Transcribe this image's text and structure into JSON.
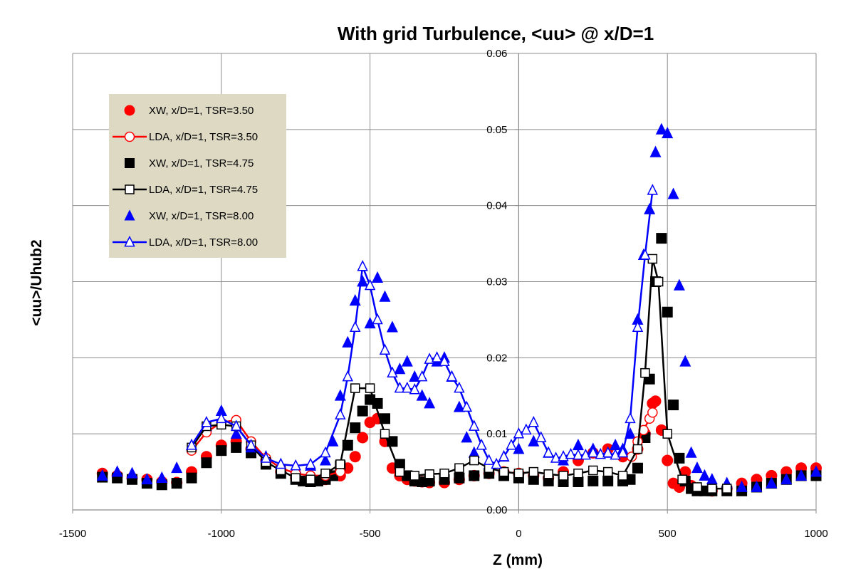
{
  "chart_data": {
    "type": "scatter",
    "title": "With grid Turbulence, <uu> @ x/D=1",
    "xlabel": "Z (mm)",
    "ylabel": "<uu>/Uhub2",
    "xlim": [
      -1500,
      1000
    ],
    "ylim": [
      0,
      0.06
    ],
    "xticks": [
      "-1500",
      "-1000",
      "-500",
      "0",
      "500",
      "1000"
    ],
    "yticks": [
      "0.00",
      "0.01",
      "0.02",
      "0.03",
      "0.04",
      "0.05",
      "0.06"
    ],
    "grid": true,
    "legend_position": "top-left",
    "series": [
      {
        "name": "XW, x/D=1, TSR=3.50",
        "color": "#ff0000",
        "marker": "circle",
        "filled": true,
        "line": false,
        "x": [
          -1400,
          -1350,
          -1300,
          -1250,
          -1200,
          -1150,
          -1100,
          -1050,
          -1000,
          -950,
          -900,
          -850,
          -800,
          -750,
          -700,
          -650,
          -600,
          -575,
          -550,
          -525,
          -500,
          -475,
          -450,
          -425,
          -400,
          -375,
          -350,
          -325,
          -300,
          -250,
          -200,
          -150,
          -100,
          -50,
          0,
          50,
          100,
          150,
          200,
          250,
          300,
          350,
          400,
          425,
          450,
          460,
          480,
          500,
          520,
          540,
          560,
          580,
          600,
          650,
          700,
          750,
          800,
          850,
          900,
          950,
          1000
        ],
        "y": [
          0.0048,
          0.0045,
          0.0042,
          0.004,
          0.0037,
          0.0036,
          0.005,
          0.007,
          0.0085,
          0.009,
          0.008,
          0.0065,
          0.005,
          0.0042,
          0.004,
          0.004,
          0.0045,
          0.0055,
          0.007,
          0.0095,
          0.0115,
          0.012,
          0.009,
          0.0055,
          0.0045,
          0.004,
          0.0038,
          0.0037,
          0.0036,
          0.0036,
          0.004,
          0.0045,
          0.0048,
          0.005,
          0.0048,
          0.0045,
          0.0042,
          0.005,
          0.0065,
          0.0075,
          0.008,
          0.007,
          0.008,
          0.01,
          0.014,
          0.0143,
          0.0105,
          0.0065,
          0.0035,
          0.003,
          0.005,
          0.0032,
          0.0028,
          0.0025,
          0.0028,
          0.0035,
          0.004,
          0.0045,
          0.005,
          0.0055,
          0.0055
        ]
      },
      {
        "name": "LDA, x/D=1, TSR=3.50",
        "color": "#ff0000",
        "marker": "circle",
        "filled": false,
        "line": true,
        "x": [
          -1100,
          -1050,
          -1000,
          -950,
          -900,
          -850,
          -800,
          -750,
          -700,
          -650,
          -600
        ],
        "y": [
          0.0078,
          0.0102,
          0.0115,
          0.0118,
          0.009,
          0.0068,
          0.0055,
          0.0048,
          0.0045,
          0.0045,
          0.005
        ],
        "x2": [
          380,
          400,
          420,
          440,
          450
        ],
        "y2": [
          0.007,
          0.009,
          0.0105,
          0.012,
          0.0128
        ]
      },
      {
        "name": "XW, x/D=1, TSR=4.75",
        "color": "#000000",
        "marker": "square",
        "filled": true,
        "line": false,
        "x": [
          -1400,
          -1350,
          -1300,
          -1250,
          -1200,
          -1150,
          -1100,
          -1050,
          -1000,
          -950,
          -900,
          -850,
          -800,
          -750,
          -725,
          -700,
          -675,
          -650,
          -625,
          -600,
          -575,
          -550,
          -525,
          -500,
          -475,
          -450,
          -425,
          -400,
          -375,
          -350,
          -325,
          -300,
          -250,
          -200,
          -150,
          -100,
          -50,
          0,
          50,
          100,
          150,
          200,
          250,
          300,
          350,
          375,
          400,
          425,
          440,
          460,
          480,
          500,
          520,
          540,
          560,
          580,
          600,
          625,
          650,
          700,
          750,
          800,
          850,
          900,
          950,
          1000
        ],
        "y": [
          0.0043,
          0.0042,
          0.004,
          0.0035,
          0.0033,
          0.0035,
          0.0042,
          0.0062,
          0.0078,
          0.0082,
          0.0075,
          0.006,
          0.0048,
          0.004,
          0.0038,
          0.0037,
          0.0038,
          0.004,
          0.0045,
          0.0058,
          0.0085,
          0.0108,
          0.013,
          0.0145,
          0.014,
          0.012,
          0.009,
          0.006,
          0.0045,
          0.0038,
          0.0037,
          0.0038,
          0.004,
          0.0042,
          0.0045,
          0.0048,
          0.0045,
          0.0042,
          0.004,
          0.0038,
          0.0037,
          0.0037,
          0.0038,
          0.0038,
          0.0038,
          0.004,
          0.0055,
          0.0095,
          0.0172,
          0.03,
          0.0357,
          0.026,
          0.0138,
          0.0068,
          0.0038,
          0.0028,
          0.0025,
          0.0025,
          0.0025,
          0.0025,
          0.0025,
          0.003,
          0.0035,
          0.004,
          0.0045,
          0.0045
        ]
      },
      {
        "name": "LDA, x/D=1, TSR=4.75",
        "color": "#000000",
        "marker": "square",
        "filled": false,
        "line": true,
        "x": [
          -1100,
          -1050,
          -1000,
          -950,
          -900,
          -850,
          -800,
          -750,
          -700,
          -650,
          -600,
          -550,
          -500,
          -450,
          -400,
          -350,
          -300,
          -250,
          -200,
          -150,
          -100,
          -50,
          0,
          50,
          100,
          150,
          200,
          250,
          300,
          350,
          400,
          425,
          450,
          470,
          500,
          550,
          600,
          650,
          700
        ],
        "y": [
          0.0082,
          0.011,
          0.0112,
          0.011,
          0.0085,
          0.0063,
          0.0052,
          0.0042,
          0.004,
          0.0048,
          0.006,
          0.016,
          0.016,
          0.01,
          0.005,
          0.0045,
          0.0047,
          0.0048,
          0.0055,
          0.0065,
          0.0055,
          0.005,
          0.0048,
          0.005,
          0.0047,
          0.0045,
          0.0048,
          0.0052,
          0.005,
          0.0045,
          0.008,
          0.018,
          0.033,
          0.03,
          0.01,
          0.004,
          0.003,
          0.0028,
          0.0028
        ]
      },
      {
        "name": "XW, x/D=1, TSR=8.00",
        "color": "#0000ff",
        "marker": "triangle",
        "filled": true,
        "line": false,
        "x": [
          -1400,
          -1350,
          -1300,
          -1250,
          -1200,
          -1150,
          -1100,
          -1050,
          -1000,
          -950,
          -900,
          -850,
          -800,
          -750,
          -700,
          -650,
          -625,
          -600,
          -575,
          -550,
          -525,
          -500,
          -475,
          -450,
          -425,
          -400,
          -375,
          -350,
          -325,
          -300,
          -275,
          -250,
          -225,
          -200,
          -175,
          -150,
          -100,
          -50,
          0,
          50,
          100,
          150,
          200,
          250,
          300,
          325,
          350,
          375,
          400,
          420,
          440,
          460,
          480,
          500,
          520,
          540,
          560,
          580,
          600,
          625,
          650,
          700,
          750,
          800,
          850,
          900,
          950,
          1000
        ],
        "y": [
          0.0045,
          0.005,
          0.0048,
          0.004,
          0.0042,
          0.0055,
          0.0085,
          0.011,
          0.013,
          0.01,
          0.0082,
          0.007,
          0.006,
          0.0055,
          0.0058,
          0.0065,
          0.009,
          0.015,
          0.022,
          0.0275,
          0.03,
          0.0245,
          0.0305,
          0.028,
          0.024,
          0.0185,
          0.0195,
          0.0175,
          0.015,
          0.014,
          0.0195,
          0.02,
          0.0175,
          0.0135,
          0.0095,
          0.0075,
          0.006,
          0.007,
          0.008,
          0.009,
          0.0075,
          0.0065,
          0.0085,
          0.008,
          0.0075,
          0.0085,
          0.008,
          0.01,
          0.025,
          0.0335,
          0.0395,
          0.047,
          0.05,
          0.0495,
          0.0415,
          0.0295,
          0.0195,
          0.0075,
          0.0055,
          0.0045,
          0.004,
          0.0035,
          0.003,
          0.003,
          0.0035,
          0.004,
          0.0045,
          0.005
        ]
      },
      {
        "name": "LDA, x/D=1, TSR=8.00",
        "color": "#0000ff",
        "marker": "triangle",
        "filled": false,
        "line": true,
        "x": [
          -1100,
          -1050,
          -1000,
          -950,
          -900,
          -850,
          -800,
          -750,
          -700,
          -650,
          -600,
          -575,
          -550,
          -525,
          -500,
          -475,
          -450,
          -425,
          -400,
          -375,
          -350,
          -325,
          -300,
          -275,
          -250,
          -225,
          -200,
          -175,
          -150,
          -125,
          -100,
          -75,
          -50,
          -25,
          0,
          25,
          50,
          75,
          100,
          125,
          150,
          175,
          200,
          225,
          250,
          275,
          300,
          325,
          350,
          375,
          400,
          425,
          450
        ],
        "y": [
          0.0085,
          0.0115,
          0.012,
          0.011,
          0.0085,
          0.0068,
          0.006,
          0.0058,
          0.006,
          0.0075,
          0.0125,
          0.0175,
          0.024,
          0.032,
          0.0295,
          0.025,
          0.021,
          0.018,
          0.016,
          0.016,
          0.0158,
          0.0175,
          0.0198,
          0.02,
          0.0195,
          0.0175,
          0.016,
          0.0135,
          0.011,
          0.0085,
          0.0065,
          0.006,
          0.007,
          0.0085,
          0.01,
          0.0105,
          0.0115,
          0.0095,
          0.0075,
          0.0068,
          0.007,
          0.0073,
          0.0072,
          0.0072,
          0.0075,
          0.0073,
          0.0075,
          0.0072,
          0.0075,
          0.012,
          0.024,
          0.0335,
          0.042
        ]
      }
    ]
  }
}
